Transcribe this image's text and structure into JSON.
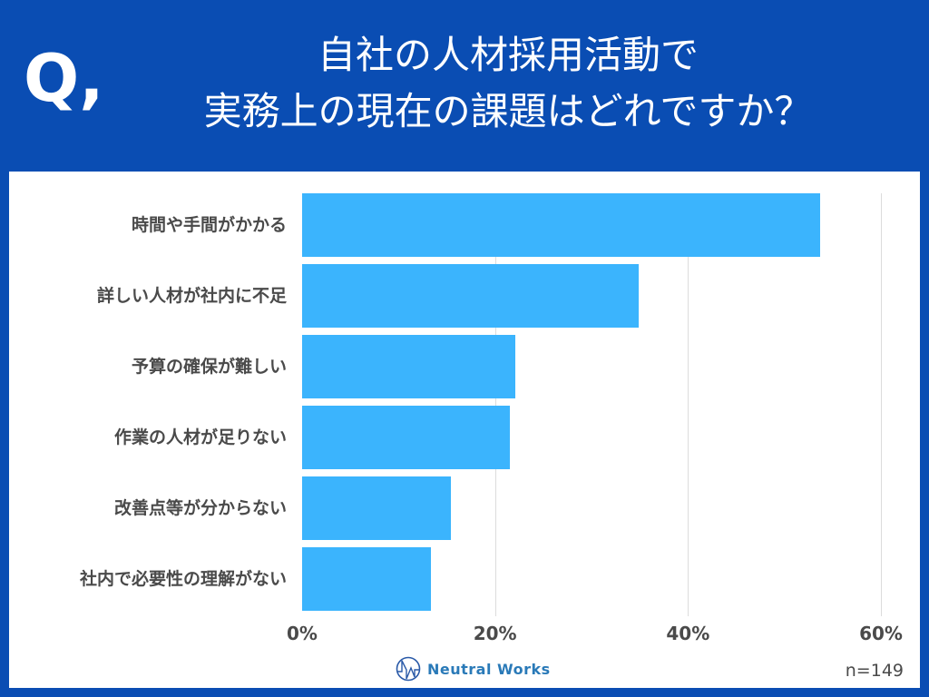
{
  "header": {
    "q_mark": "Q,",
    "title_line1": "自社の人材採用活動で",
    "title_line2": "実務上の現在の課題はどれですか？"
  },
  "colors": {
    "frame": "#0a4db3",
    "bar": "#3bb4fd",
    "text": "#4a4a4a",
    "logo": "#2a7ab8"
  },
  "footer": {
    "logo_text": "Neutral Works",
    "sample_size": "n=149"
  },
  "chart_data": {
    "type": "bar",
    "orientation": "horizontal",
    "title": "自社の人材採用活動で実務上の現在の課題はどれですか？",
    "categories": [
      "時間や手間がかかる",
      "詳しい人材が社内に不足",
      "予算の確保が難しい",
      "作業の人材が足りない",
      "改善点等が分からない",
      "社内で必要性の理解がない"
    ],
    "values": [
      53.7,
      34.9,
      22.1,
      21.5,
      15.4,
      13.4
    ],
    "xlabel": "",
    "ylabel": "",
    "xlim": [
      0,
      60
    ],
    "ticks": [
      "0%",
      "20%",
      "40%",
      "60%"
    ],
    "tick_values": [
      0,
      20,
      40,
      60
    ],
    "grid": true,
    "legend": null,
    "annotation": "n=149"
  }
}
